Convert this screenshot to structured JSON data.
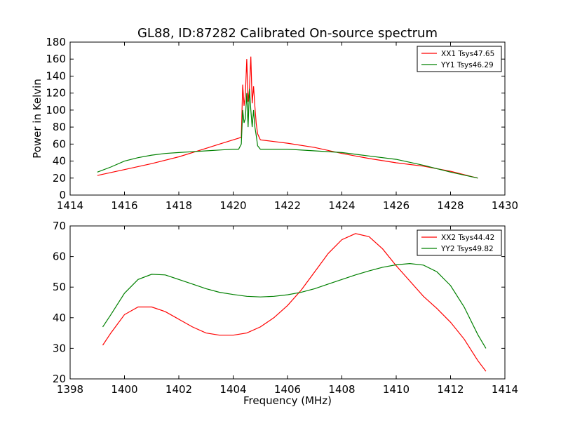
{
  "figure": {
    "title": "GL88, ID:87282 Calibrated On-source spectrum"
  },
  "chart_data": [
    {
      "type": "line",
      "title": "GL88, ID:87282 Calibrated On-source spectrum",
      "xlabel": "",
      "ylabel": "Power in Kelvin",
      "xlim": [
        1414,
        1430
      ],
      "ylim": [
        0,
        180
      ],
      "xticks": [
        1414,
        1416,
        1418,
        1420,
        1422,
        1424,
        1426,
        1428,
        1430
      ],
      "yticks": [
        0,
        20,
        40,
        60,
        80,
        100,
        120,
        140,
        160,
        180
      ],
      "grid": false,
      "legend_position": "top-right",
      "series": [
        {
          "name": "XX1 Tsys47.65",
          "color": "#ff0000",
          "points": [
            [
              1415.0,
              23
            ],
            [
              1416.0,
              30
            ],
            [
              1417.0,
              37
            ],
            [
              1418.0,
              45
            ],
            [
              1419.0,
              55
            ],
            [
              1419.5,
              60
            ],
            [
              1420.0,
              65
            ],
            [
              1420.2,
              67
            ],
            [
              1420.3,
              68
            ],
            [
              1420.35,
              130
            ],
            [
              1420.4,
              105
            ],
            [
              1420.45,
              118
            ],
            [
              1420.5,
              160
            ],
            [
              1420.55,
              110
            ],
            [
              1420.6,
              125
            ],
            [
              1420.65,
              163
            ],
            [
              1420.7,
              108
            ],
            [
              1420.75,
              128
            ],
            [
              1420.8,
              104
            ],
            [
              1420.85,
              84
            ],
            [
              1420.9,
              72
            ],
            [
              1421.0,
              65
            ],
            [
              1421.5,
              63
            ],
            [
              1422.0,
              61
            ],
            [
              1423.0,
              56
            ],
            [
              1424.0,
              49
            ],
            [
              1425.0,
              43
            ],
            [
              1426.0,
              38
            ],
            [
              1427.0,
              34
            ],
            [
              1428.0,
              28
            ],
            [
              1429.0,
              20
            ]
          ]
        },
        {
          "name": "YY1 Tsys46.29",
          "color": "#008000",
          "points": [
            [
              1415.0,
              27
            ],
            [
              1415.5,
              33
            ],
            [
              1416.0,
              40
            ],
            [
              1416.5,
              44
            ],
            [
              1417.0,
              47
            ],
            [
              1417.5,
              49
            ],
            [
              1418.0,
              50
            ],
            [
              1418.5,
              51
            ],
            [
              1419.0,
              52
            ],
            [
              1419.5,
              53
            ],
            [
              1420.0,
              54
            ],
            [
              1420.2,
              54
            ],
            [
              1420.3,
              60
            ],
            [
              1420.35,
              100
            ],
            [
              1420.4,
              85
            ],
            [
              1420.45,
              90
            ],
            [
              1420.5,
              120
            ],
            [
              1420.55,
              80
            ],
            [
              1420.6,
              125
            ],
            [
              1420.65,
              100
            ],
            [
              1420.7,
              80
            ],
            [
              1420.75,
              100
            ],
            [
              1420.8,
              80
            ],
            [
              1420.85,
              70
            ],
            [
              1420.9,
              58
            ],
            [
              1421.0,
              54
            ],
            [
              1422.0,
              54
            ],
            [
              1423.0,
              52
            ],
            [
              1424.0,
              50
            ],
            [
              1425.0,
              46
            ],
            [
              1426.0,
              42
            ],
            [
              1427.0,
              35
            ],
            [
              1428.0,
              27
            ],
            [
              1429.0,
              20
            ]
          ]
        }
      ]
    },
    {
      "type": "line",
      "title": "",
      "xlabel": "Frequency (MHz)",
      "ylabel": "",
      "xlim": [
        1398,
        1414
      ],
      "ylim": [
        20,
        70
      ],
      "xticks": [
        1398,
        1400,
        1402,
        1404,
        1406,
        1408,
        1410,
        1412,
        1414
      ],
      "yticks": [
        20,
        30,
        40,
        50,
        60,
        70
      ],
      "grid": false,
      "legend_position": "top-right",
      "series": [
        {
          "name": "XX2 Tsys44.42",
          "color": "#ff0000",
          "points": [
            [
              1399.2,
              31
            ],
            [
              1399.5,
              35
            ],
            [
              1400.0,
              41
            ],
            [
              1400.5,
              43.5
            ],
            [
              1401.0,
              43.5
            ],
            [
              1401.5,
              42
            ],
            [
              1402.0,
              39.5
            ],
            [
              1402.5,
              37
            ],
            [
              1403.0,
              35
            ],
            [
              1403.5,
              34.3
            ],
            [
              1404.0,
              34.3
            ],
            [
              1404.5,
              35
            ],
            [
              1405.0,
              37
            ],
            [
              1405.5,
              40
            ],
            [
              1406.0,
              44
            ],
            [
              1406.5,
              49
            ],
            [
              1407.0,
              55
            ],
            [
              1407.5,
              61
            ],
            [
              1408.0,
              65.5
            ],
            [
              1408.5,
              67.5
            ],
            [
              1409.0,
              66.5
            ],
            [
              1409.5,
              62.5
            ],
            [
              1410.0,
              57
            ],
            [
              1410.5,
              52
            ],
            [
              1411.0,
              47
            ],
            [
              1411.5,
              43
            ],
            [
              1412.0,
              38.5
            ],
            [
              1412.5,
              33
            ],
            [
              1413.0,
              26
            ],
            [
              1413.3,
              22.5
            ]
          ]
        },
        {
          "name": "YY2 Tsys49.82",
          "color": "#008000",
          "points": [
            [
              1399.2,
              37
            ],
            [
              1399.5,
              41
            ],
            [
              1400.0,
              48
            ],
            [
              1400.5,
              52.5
            ],
            [
              1401.0,
              54.2
            ],
            [
              1401.5,
              54
            ],
            [
              1402.0,
              52.5
            ],
            [
              1402.5,
              51
            ],
            [
              1403.0,
              49.5
            ],
            [
              1403.5,
              48.3
            ],
            [
              1404.0,
              47.6
            ],
            [
              1404.5,
              47
            ],
            [
              1405.0,
              46.8
            ],
            [
              1405.5,
              47
            ],
            [
              1406.0,
              47.5
            ],
            [
              1406.5,
              48.3
            ],
            [
              1407.0,
              49.5
            ],
            [
              1407.5,
              51
            ],
            [
              1408.0,
              52.5
            ],
            [
              1408.5,
              54
            ],
            [
              1409.0,
              55.3
            ],
            [
              1409.5,
              56.5
            ],
            [
              1410.0,
              57.3
            ],
            [
              1410.5,
              57.7
            ],
            [
              1411.0,
              57.2
            ],
            [
              1411.5,
              55
            ],
            [
              1412.0,
              50.5
            ],
            [
              1412.5,
              43.5
            ],
            [
              1413.0,
              34.5
            ],
            [
              1413.3,
              30
            ]
          ]
        }
      ]
    }
  ]
}
